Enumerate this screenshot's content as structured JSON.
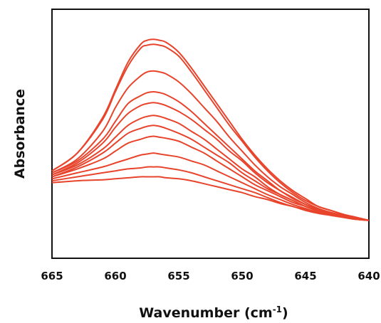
{
  "chart_data": {
    "type": "line",
    "title": "",
    "xlabel": "Wavenumber (cm",
    "xlabel_sup": "-1",
    "xlabel_close": ")",
    "ylabel": "Absorbance",
    "xlim": [
      665,
      640
    ],
    "ylim": [
      0,
      1
    ],
    "x_ticks": [
      665,
      660,
      655,
      650,
      645,
      640
    ],
    "x_tick_labels": [
      "665",
      "660",
      "655",
      "650",
      "645",
      "640"
    ],
    "grid": false,
    "legend": "none",
    "series_color": "#e8442c",
    "x": [
      665,
      663,
      661,
      660,
      659,
      658,
      657.5,
      657,
      656.5,
      656,
      655,
      654,
      653,
      652,
      651,
      650,
      649,
      648,
      647,
      646,
      645,
      644,
      643,
      642,
      641,
      640
    ],
    "series": [
      {
        "values": [
          0.28,
          0.37,
          0.55,
          0.69,
          0.83,
          0.92,
          0.94,
          0.945,
          0.94,
          0.93,
          0.88,
          0.8,
          0.71,
          0.62,
          0.53,
          0.44,
          0.36,
          0.29,
          0.23,
          0.18,
          0.14,
          0.1,
          0.08,
          0.06,
          0.045,
          0.03
        ]
      },
      {
        "values": [
          0.28,
          0.37,
          0.54,
          0.68,
          0.81,
          0.9,
          0.915,
          0.92,
          0.915,
          0.905,
          0.86,
          0.78,
          0.69,
          0.6,
          0.51,
          0.43,
          0.35,
          0.28,
          0.22,
          0.17,
          0.13,
          0.1,
          0.08,
          0.06,
          0.045,
          0.03
        ]
      },
      {
        "values": [
          0.27,
          0.34,
          0.48,
          0.6,
          0.7,
          0.76,
          0.78,
          0.785,
          0.78,
          0.77,
          0.73,
          0.67,
          0.6,
          0.53,
          0.45,
          0.38,
          0.31,
          0.25,
          0.2,
          0.16,
          0.12,
          0.09,
          0.07,
          0.055,
          0.04,
          0.03
        ]
      },
      {
        "values": [
          0.27,
          0.33,
          0.44,
          0.53,
          0.62,
          0.66,
          0.675,
          0.68,
          0.675,
          0.665,
          0.63,
          0.58,
          0.52,
          0.46,
          0.4,
          0.34,
          0.28,
          0.23,
          0.18,
          0.145,
          0.11,
          0.085,
          0.065,
          0.05,
          0.04,
          0.03
        ]
      },
      {
        "values": [
          0.26,
          0.32,
          0.42,
          0.5,
          0.57,
          0.61,
          0.62,
          0.625,
          0.62,
          0.61,
          0.58,
          0.54,
          0.49,
          0.44,
          0.38,
          0.33,
          0.27,
          0.22,
          0.18,
          0.14,
          0.11,
          0.085,
          0.065,
          0.05,
          0.04,
          0.03
        ]
      },
      {
        "values": [
          0.26,
          0.31,
          0.39,
          0.45,
          0.51,
          0.545,
          0.555,
          0.56,
          0.555,
          0.545,
          0.52,
          0.48,
          0.44,
          0.39,
          0.34,
          0.29,
          0.25,
          0.2,
          0.16,
          0.13,
          0.1,
          0.08,
          0.06,
          0.05,
          0.04,
          0.03
        ]
      },
      {
        "values": [
          0.25,
          0.3,
          0.37,
          0.42,
          0.47,
          0.495,
          0.505,
          0.51,
          0.505,
          0.495,
          0.47,
          0.44,
          0.4,
          0.36,
          0.32,
          0.27,
          0.23,
          0.19,
          0.16,
          0.13,
          0.1,
          0.08,
          0.06,
          0.05,
          0.04,
          0.03
        ]
      },
      {
        "values": [
          0.25,
          0.29,
          0.34,
          0.38,
          0.42,
          0.44,
          0.45,
          0.455,
          0.45,
          0.445,
          0.43,
          0.4,
          0.37,
          0.33,
          0.29,
          0.25,
          0.21,
          0.18,
          0.15,
          0.12,
          0.1,
          0.075,
          0.06,
          0.05,
          0.04,
          0.03
        ]
      },
      {
        "values": [
          0.24,
          0.27,
          0.3,
          0.32,
          0.34,
          0.36,
          0.365,
          0.37,
          0.365,
          0.36,
          0.35,
          0.33,
          0.31,
          0.28,
          0.25,
          0.22,
          0.19,
          0.16,
          0.135,
          0.11,
          0.09,
          0.07,
          0.06,
          0.045,
          0.035,
          0.03
        ]
      },
      {
        "values": [
          0.23,
          0.25,
          0.27,
          0.28,
          0.29,
          0.295,
          0.3,
          0.3,
          0.3,
          0.295,
          0.285,
          0.27,
          0.25,
          0.23,
          0.21,
          0.19,
          0.17,
          0.145,
          0.12,
          0.1,
          0.085,
          0.07,
          0.055,
          0.045,
          0.035,
          0.03
        ]
      },
      {
        "values": [
          0.22,
          0.23,
          0.235,
          0.24,
          0.245,
          0.25,
          0.25,
          0.25,
          0.25,
          0.245,
          0.24,
          0.23,
          0.215,
          0.2,
          0.185,
          0.17,
          0.15,
          0.135,
          0.115,
          0.1,
          0.08,
          0.065,
          0.055,
          0.045,
          0.035,
          0.03
        ]
      }
    ]
  }
}
